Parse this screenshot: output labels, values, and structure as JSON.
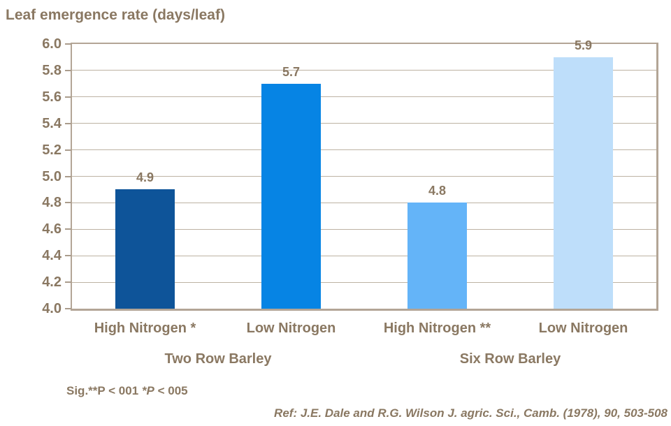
{
  "chart_data": {
    "type": "bar",
    "title": "Leaf emergence rate (days/leaf)",
    "categories": [
      "High Nitrogen *",
      "Low Nitrogen",
      "High Nitrogen **",
      "Low Nitrogen"
    ],
    "values": [
      4.9,
      5.7,
      4.8,
      5.9
    ],
    "data_labels": [
      "4.9",
      "5.7",
      "4.8",
      "5.9"
    ],
    "bar_colors": [
      "#0e5499",
      "#0684e4",
      "#64b4f8",
      "#bedefa"
    ],
    "groups": [
      {
        "label": "Two Row Barley",
        "span": [
          0,
          1
        ]
      },
      {
        "label": "Six Row Barley",
        "span": [
          2,
          3
        ]
      }
    ],
    "xlabel": "",
    "ylabel": "Leaf emergence rate (days/leaf)",
    "ylim": [
      4.0,
      6.0
    ],
    "ytick_step": 0.2,
    "ytick_labels": [
      "4.0",
      "4.2",
      "4.4",
      "4.6",
      "4.8",
      "5.0",
      "5.2",
      "5.4",
      "5.6",
      "5.8",
      "6.0"
    ],
    "grid": true,
    "legend_position": "none"
  },
  "annotations": {
    "sig_prefix": "Sig.**P < 001 ",
    "sig_italic": "*P",
    "sig_suffix": " < 005",
    "reference": "Ref: J.E. Dale and R.G. Wilson J. agric. Sci., Camb. (1978), 90, 503-508"
  },
  "colors": {
    "text": "#8a7862",
    "gridline": "#bdb2a3",
    "axis_border": "#b3a596",
    "background": "#ffffff"
  }
}
